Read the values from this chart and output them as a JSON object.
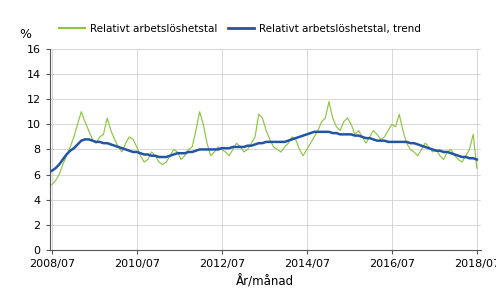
{
  "xlabel": "År/månad",
  "ylabel": "%",
  "legend_label1": "Relativt arbetslöshetstal",
  "legend_label2": "Relativt arbetslöshetstal, trend",
  "color1": "#8dc63f",
  "color2": "#2255a4",
  "ylim": [
    0,
    16
  ],
  "yticks": [
    0,
    2,
    4,
    6,
    8,
    10,
    12,
    14,
    16
  ],
  "xtick_labels": [
    "2008/07",
    "2010/07",
    "2012/07",
    "2014/07",
    "2016/07",
    "2018/07"
  ],
  "bg_color": "#ffffff",
  "grid_color": "#c8c8c8",
  "raw_values": [
    5.2,
    5.5,
    6.0,
    6.8,
    7.5,
    8.2,
    9.0,
    10.0,
    11.0,
    10.2,
    9.5,
    8.8,
    8.5,
    9.0,
    9.2,
    10.5,
    9.5,
    8.8,
    8.2,
    7.8,
    8.5,
    9.0,
    8.8,
    8.2,
    7.5,
    7.0,
    7.2,
    7.8,
    7.5,
    7.0,
    6.8,
    7.0,
    7.5,
    8.0,
    7.8,
    7.2,
    7.5,
    8.0,
    8.2,
    9.5,
    11.0,
    10.0,
    8.5,
    7.5,
    7.8,
    8.2,
    8.0,
    7.8,
    7.5,
    8.0,
    8.5,
    8.2,
    7.8,
    8.0,
    8.5,
    9.0,
    10.8,
    10.5,
    9.5,
    8.8,
    8.2,
    8.0,
    7.8,
    8.2,
    8.5,
    9.0,
    8.8,
    8.0,
    7.5,
    8.0,
    8.5,
    9.0,
    9.5,
    10.2,
    10.5,
    11.8,
    10.5,
    9.8,
    9.5,
    10.2,
    10.5,
    10.0,
    9.2,
    9.5,
    9.0,
    8.5,
    9.0,
    9.5,
    9.2,
    8.8,
    9.0,
    9.5,
    10.0,
    9.8,
    10.8,
    9.5,
    8.5,
    8.0,
    7.8,
    7.5,
    8.0,
    8.5,
    8.2,
    7.8,
    8.0,
    7.5,
    7.2,
    7.8,
    8.0,
    7.5,
    7.2,
    7.0,
    7.5,
    8.0,
    9.2,
    6.5
  ],
  "trend_values": [
    6.3,
    6.5,
    6.8,
    7.2,
    7.6,
    7.9,
    8.1,
    8.4,
    8.7,
    8.8,
    8.8,
    8.7,
    8.6,
    8.6,
    8.5,
    8.5,
    8.4,
    8.3,
    8.2,
    8.1,
    8.0,
    7.9,
    7.8,
    7.8,
    7.7,
    7.6,
    7.6,
    7.5,
    7.5,
    7.4,
    7.4,
    7.4,
    7.5,
    7.6,
    7.7,
    7.7,
    7.7,
    7.8,
    7.8,
    7.9,
    8.0,
    8.0,
    8.0,
    8.0,
    8.0,
    8.0,
    8.1,
    8.1,
    8.1,
    8.2,
    8.2,
    8.2,
    8.2,
    8.3,
    8.3,
    8.4,
    8.5,
    8.5,
    8.6,
    8.6,
    8.6,
    8.6,
    8.6,
    8.6,
    8.7,
    8.8,
    8.9,
    9.0,
    9.1,
    9.2,
    9.3,
    9.4,
    9.4,
    9.4,
    9.4,
    9.4,
    9.3,
    9.3,
    9.2,
    9.2,
    9.2,
    9.2,
    9.1,
    9.1,
    9.0,
    8.9,
    8.9,
    8.8,
    8.7,
    8.7,
    8.7,
    8.6,
    8.6,
    8.6,
    8.6,
    8.6,
    8.6,
    8.5,
    8.5,
    8.4,
    8.3,
    8.2,
    8.1,
    8.0,
    7.9,
    7.9,
    7.8,
    7.8,
    7.7,
    7.6,
    7.5,
    7.4,
    7.4,
    7.3,
    7.3,
    7.2
  ]
}
